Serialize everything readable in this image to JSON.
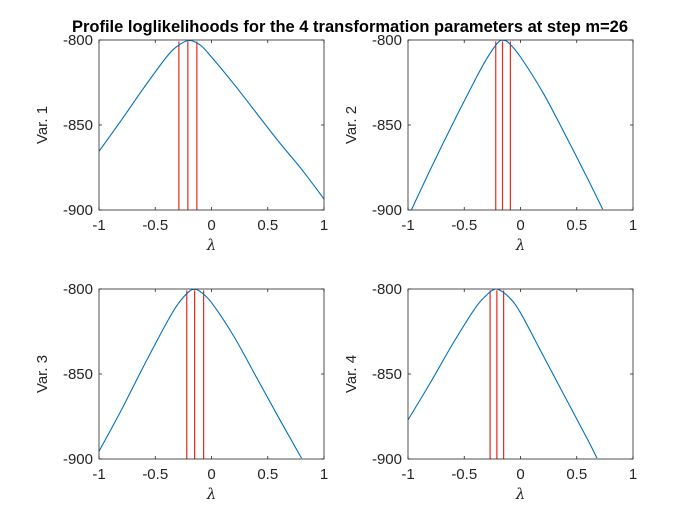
{
  "figure": {
    "title": "Profile loglikelihoods for the 4 transformation parameters  at step m=26"
  },
  "colors": {
    "curve": "#0072BD",
    "interval_lines": "#E8291C",
    "axis": "#262626"
  },
  "chart_data": [
    {
      "type": "line",
      "title": "",
      "xlabel": "λ",
      "ylabel": "Var. 1",
      "xlim": [
        -1,
        1
      ],
      "ylim": [
        -900,
        -800
      ],
      "xticks": [
        "-1",
        "-0.5",
        "0",
        "0.5",
        "1"
      ],
      "yticks": [
        "-800",
        "-850",
        "-900"
      ],
      "grid": false,
      "x": [
        -1,
        -0.8,
        -0.6,
        -0.4,
        -0.3,
        -0.2,
        -0.1,
        0,
        0.2,
        0.4,
        0.6,
        0.8,
        1
      ],
      "y": [
        -865.5,
        -847,
        -828,
        -810,
        -803.5,
        -800.3,
        -803,
        -810,
        -826,
        -843,
        -860,
        -876,
        -893.5
      ],
      "vlines": [
        -0.29,
        -0.21,
        -0.13
      ]
    },
    {
      "type": "line",
      "title": "",
      "xlabel": "λ",
      "ylabel": "Var. 2",
      "xlim": [
        -1,
        1
      ],
      "ylim": [
        -900,
        -800
      ],
      "xticks": [
        "-1",
        "-0.5",
        "0",
        "0.5",
        "1"
      ],
      "yticks": [
        "-800",
        "-850",
        "-900"
      ],
      "grid": false,
      "x": [
        -0.97,
        -0.8,
        -0.6,
        -0.4,
        -0.3,
        -0.2,
        -0.15,
        -0.1,
        0,
        0.2,
        0.4,
        0.6,
        0.73
      ],
      "y": [
        -900,
        -876,
        -849,
        -823,
        -811,
        -801.5,
        -800.2,
        -802,
        -810,
        -831,
        -856,
        -882,
        -899.5
      ],
      "vlines": [
        -0.22,
        -0.16,
        -0.09
      ]
    },
    {
      "type": "line",
      "title": "",
      "xlabel": "λ",
      "ylabel": "Var. 3",
      "xlim": [
        -1,
        1
      ],
      "ylim": [
        -900,
        -800
      ],
      "xticks": [
        "-1",
        "-0.5",
        "0",
        "0.5",
        "1"
      ],
      "yticks": [
        "-800",
        "-850",
        "-900"
      ],
      "grid": false,
      "x": [
        -1,
        -0.8,
        -0.6,
        -0.4,
        -0.3,
        -0.2,
        -0.15,
        -0.1,
        0,
        0.2,
        0.4,
        0.6,
        0.8
      ],
      "y": [
        -895.5,
        -871,
        -845,
        -820,
        -809,
        -801.5,
        -800.2,
        -801.5,
        -808,
        -828,
        -852,
        -876,
        -899.5
      ],
      "vlines": [
        -0.22,
        -0.15,
        -0.07
      ]
    },
    {
      "type": "line",
      "title": "",
      "xlabel": "λ",
      "ylabel": "Var. 4",
      "xlim": [
        -1,
        1
      ],
      "ylim": [
        -900,
        -800
      ],
      "xticks": [
        "-1",
        "-0.5",
        "0",
        "0.5",
        "1"
      ],
      "yticks": [
        "-800",
        "-850",
        "-900"
      ],
      "grid": false,
      "x": [
        -1,
        -0.8,
        -0.6,
        -0.4,
        -0.3,
        -0.25,
        -0.2,
        -0.1,
        0,
        0.2,
        0.4,
        0.6,
        0.68
      ],
      "y": [
        -877,
        -855,
        -832,
        -811,
        -803.5,
        -800.8,
        -800.2,
        -805,
        -814,
        -839,
        -864,
        -889,
        -899.5
      ],
      "vlines": [
        -0.27,
        -0.21,
        -0.15
      ]
    }
  ]
}
